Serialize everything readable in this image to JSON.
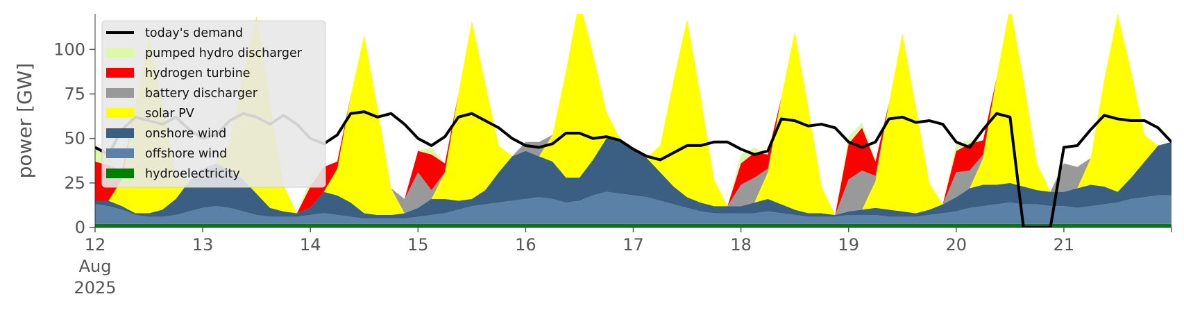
{
  "chart_data": {
    "type": "area",
    "ylabel": "power [GW]",
    "ylim": [
      0,
      120
    ],
    "yticks": [
      0,
      25,
      50,
      75,
      100
    ],
    "xlim": [
      "2025-08-12",
      "2025-08-22"
    ],
    "xticks": [
      {
        "date": "2025-08-12",
        "label": "12",
        "sub1": "Aug",
        "sub2": "2025"
      },
      {
        "date": "2025-08-13",
        "label": "13"
      },
      {
        "date": "2025-08-14",
        "label": "14"
      },
      {
        "date": "2025-08-15",
        "label": "15"
      },
      {
        "date": "2025-08-16",
        "label": "16"
      },
      {
        "date": "2025-08-17",
        "label": "17"
      },
      {
        "date": "2025-08-18",
        "label": "18"
      },
      {
        "date": "2025-08-19",
        "label": "19"
      },
      {
        "date": "2025-08-20",
        "label": "20"
      },
      {
        "date": "2025-08-21",
        "label": "21"
      }
    ],
    "legend_position": "top-left",
    "grid": false,
    "x": [
      "2025-08-12 00:00",
      "2025-08-12 03:00",
      "2025-08-12 06:00",
      "2025-08-12 09:00",
      "2025-08-12 12:00",
      "2025-08-12 15:00",
      "2025-08-12 18:00",
      "2025-08-12 21:00",
      "2025-08-13 00:00",
      "2025-08-13 03:00",
      "2025-08-13 06:00",
      "2025-08-13 09:00",
      "2025-08-13 12:00",
      "2025-08-13 15:00",
      "2025-08-13 18:00",
      "2025-08-13 21:00",
      "2025-08-14 00:00",
      "2025-08-14 03:00",
      "2025-08-14 06:00",
      "2025-08-14 09:00",
      "2025-08-14 12:00",
      "2025-08-14 15:00",
      "2025-08-14 18:00",
      "2025-08-14 21:00",
      "2025-08-15 00:00",
      "2025-08-15 03:00",
      "2025-08-15 06:00",
      "2025-08-15 09:00",
      "2025-08-15 12:00",
      "2025-08-15 15:00",
      "2025-08-15 18:00",
      "2025-08-15 21:00",
      "2025-08-16 00:00",
      "2025-08-16 03:00",
      "2025-08-16 06:00",
      "2025-08-16 09:00",
      "2025-08-16 12:00",
      "2025-08-16 15:00",
      "2025-08-16 18:00",
      "2025-08-16 21:00",
      "2025-08-17 00:00",
      "2025-08-17 03:00",
      "2025-08-17 06:00",
      "2025-08-17 09:00",
      "2025-08-17 12:00",
      "2025-08-17 15:00",
      "2025-08-17 18:00",
      "2025-08-17 21:00",
      "2025-08-18 00:00",
      "2025-08-18 03:00",
      "2025-08-18 06:00",
      "2025-08-18 09:00",
      "2025-08-18 12:00",
      "2025-08-18 15:00",
      "2025-08-18 18:00",
      "2025-08-18 21:00",
      "2025-08-19 00:00",
      "2025-08-19 03:00",
      "2025-08-19 06:00",
      "2025-08-19 09:00",
      "2025-08-19 12:00",
      "2025-08-19 15:00",
      "2025-08-19 18:00",
      "2025-08-19 21:00",
      "2025-08-20 00:00",
      "2025-08-20 03:00",
      "2025-08-20 06:00",
      "2025-08-20 09:00",
      "2025-08-20 12:00",
      "2025-08-20 15:00",
      "2025-08-20 18:00",
      "2025-08-20 21:00",
      "2025-08-21 00:00",
      "2025-08-21 03:00",
      "2025-08-21 06:00",
      "2025-08-21 09:00",
      "2025-08-21 12:00",
      "2025-08-21 15:00",
      "2025-08-21 18:00",
      "2025-08-21 21:00",
      "2025-08-22 00:00"
    ],
    "series": [
      {
        "name": "hydroelectricity",
        "color": "#008000",
        "values": [
          2,
          2,
          2,
          2,
          2,
          2,
          2,
          2,
          2,
          2,
          2,
          2,
          2,
          2,
          2,
          2,
          2,
          2,
          2,
          2,
          2,
          2,
          2,
          2,
          2,
          2,
          2,
          2,
          2,
          2,
          2,
          2,
          2,
          2,
          2,
          2,
          2,
          2,
          2,
          2,
          2,
          2,
          2,
          2,
          2,
          2,
          2,
          2,
          2,
          2,
          2,
          2,
          2,
          2,
          2,
          2,
          2,
          2,
          2,
          2,
          2,
          2,
          2,
          2,
          2,
          2,
          2,
          2,
          2,
          2,
          2,
          2,
          2,
          2,
          2,
          2,
          2,
          2,
          2,
          2,
          2
        ]
      },
      {
        "name": "offshore wind",
        "color": "#5b82a6",
        "values": [
          11,
          10,
          8,
          5,
          4,
          4,
          5,
          7,
          9,
          10,
          9,
          7,
          5,
          4,
          4,
          4,
          5,
          6,
          5,
          4,
          3,
          3,
          3,
          3,
          4,
          5,
          6,
          8,
          10,
          11,
          12,
          13,
          14,
          15,
          14,
          12,
          13,
          16,
          18,
          17,
          16,
          15,
          13,
          11,
          9,
          7,
          6,
          6,
          6,
          6,
          7,
          6,
          5,
          4,
          4,
          4,
          5,
          5,
          5,
          4,
          4,
          4,
          5,
          6,
          7,
          9,
          10,
          11,
          12,
          11,
          11,
          10,
          10,
          9,
          10,
          11,
          12,
          14,
          15,
          16,
          16
        ]
      },
      {
        "name": "onshore wind",
        "color": "#3a5f82",
        "values": [
          2,
          3,
          2,
          1,
          2,
          4,
          9,
          17,
          22,
          24,
          21,
          18,
          12,
          5,
          3,
          2,
          4,
          12,
          11,
          8,
          3,
          2,
          2,
          3,
          5,
          9,
          8,
          5,
          4,
          8,
          17,
          25,
          27,
          23,
          21,
          14,
          13,
          20,
          30,
          31,
          26,
          22,
          16,
          10,
          6,
          5,
          4,
          4,
          4,
          6,
          7,
          5,
          3,
          2,
          2,
          1,
          2,
          3,
          4,
          4,
          3,
          2,
          3,
          5,
          8,
          11,
          12,
          11,
          11,
          10,
          8,
          8,
          8,
          11,
          12,
          10,
          6,
          12,
          20,
          28,
          30
        ]
      },
      {
        "name": "solar PV",
        "color": "#ffff00",
        "values": [
          0,
          0,
          15,
          60,
          100,
          60,
          15,
          0,
          0,
          0,
          15,
          60,
          100,
          60,
          15,
          0,
          0,
          0,
          15,
          60,
          100,
          60,
          15,
          0,
          0,
          0,
          15,
          60,
          100,
          60,
          15,
          0,
          0,
          0,
          15,
          60,
          100,
          60,
          15,
          0,
          0,
          0,
          15,
          60,
          100,
          60,
          15,
          0,
          0,
          0,
          15,
          60,
          100,
          60,
          15,
          0,
          0,
          0,
          15,
          60,
          100,
          60,
          15,
          0,
          0,
          0,
          15,
          60,
          100,
          60,
          15,
          0,
          0,
          0,
          15,
          60,
          100,
          60,
          15,
          0,
          0
        ]
      },
      {
        "name": "battery discharger",
        "color": "#999999",
        "values": [
          0,
          0,
          0,
          0,
          0,
          0,
          0,
          0,
          0,
          0,
          0,
          0,
          0,
          0,
          0,
          0,
          0,
          0,
          0,
          0,
          0,
          0,
          0,
          8,
          20,
          5,
          0,
          0,
          0,
          0,
          0,
          0,
          5,
          8,
          0,
          0,
          0,
          0,
          0,
          0,
          0,
          0,
          0,
          0,
          0,
          0,
          0,
          0,
          12,
          14,
          2,
          0,
          0,
          0,
          0,
          0,
          18,
          22,
          3,
          0,
          0,
          0,
          0,
          0,
          14,
          10,
          2,
          0,
          0,
          0,
          0,
          0,
          16,
          12,
          0,
          0,
          0,
          0,
          0,
          0,
          0
        ]
      },
      {
        "name": "hydrogen turbine",
        "color": "#ff0000",
        "values": [
          22,
          20,
          5,
          0,
          0,
          0,
          0,
          0,
          0,
          0,
          0,
          0,
          0,
          0,
          0,
          0,
          12,
          14,
          4,
          0,
          0,
          0,
          0,
          0,
          12,
          20,
          5,
          0,
          0,
          0,
          0,
          0,
          0,
          0,
          0,
          0,
          0,
          0,
          0,
          0,
          0,
          0,
          0,
          0,
          0,
          0,
          0,
          0,
          12,
          14,
          8,
          0,
          0,
          0,
          0,
          0,
          20,
          24,
          8,
          0,
          0,
          0,
          0,
          0,
          12,
          15,
          8,
          0,
          0,
          0,
          0,
          0,
          0,
          0,
          0,
          0,
          0,
          0,
          0,
          0,
          0
        ]
      },
      {
        "name": "pumped hydro discharger",
        "color": "#ddf9a6",
        "values": [
          8,
          5,
          0,
          0,
          0,
          0,
          0,
          0,
          0,
          0,
          0,
          0,
          0,
          0,
          0,
          0,
          5,
          0,
          0,
          0,
          0,
          0,
          0,
          0,
          0,
          4,
          0,
          0,
          0,
          0,
          0,
          0,
          0,
          0,
          0,
          0,
          0,
          0,
          0,
          0,
          0,
          0,
          0,
          0,
          0,
          0,
          0,
          0,
          5,
          3,
          0,
          0,
          0,
          0,
          0,
          0,
          4,
          3,
          0,
          0,
          0,
          0,
          0,
          0,
          4,
          2,
          0,
          0,
          0,
          0,
          0,
          0,
          0,
          0,
          0,
          0,
          0,
          0,
          0,
          0,
          0
        ]
      }
    ],
    "demand": {
      "name": "today's demand",
      "color": "#000000",
      "values": [
        45,
        41,
        55,
        62,
        60,
        58,
        62,
        55,
        50,
        52,
        60,
        64,
        62,
        58,
        63,
        58,
        50,
        47,
        52,
        64,
        65,
        62,
        64,
        58,
        50,
        46,
        51,
        62,
        64,
        60,
        56,
        50,
        46,
        45,
        47,
        53,
        53,
        50,
        51,
        49,
        44,
        40,
        38,
        42,
        46,
        46,
        48,
        48,
        44,
        41,
        43,
        61,
        60,
        57,
        58,
        56,
        48,
        45,
        48,
        61,
        62,
        59,
        60,
        58,
        48,
        45,
        55,
        64,
        62,
        0,
        0,
        0,
        45,
        46,
        55,
        63,
        61,
        60,
        60,
        56,
        48
      ]
    },
    "legend_order": [
      "today's demand",
      "pumped hydro discharger",
      "hydrogen turbine",
      "battery discharger",
      "solar PV",
      "onshore wind",
      "offshore wind",
      "hydroelectricity"
    ]
  }
}
